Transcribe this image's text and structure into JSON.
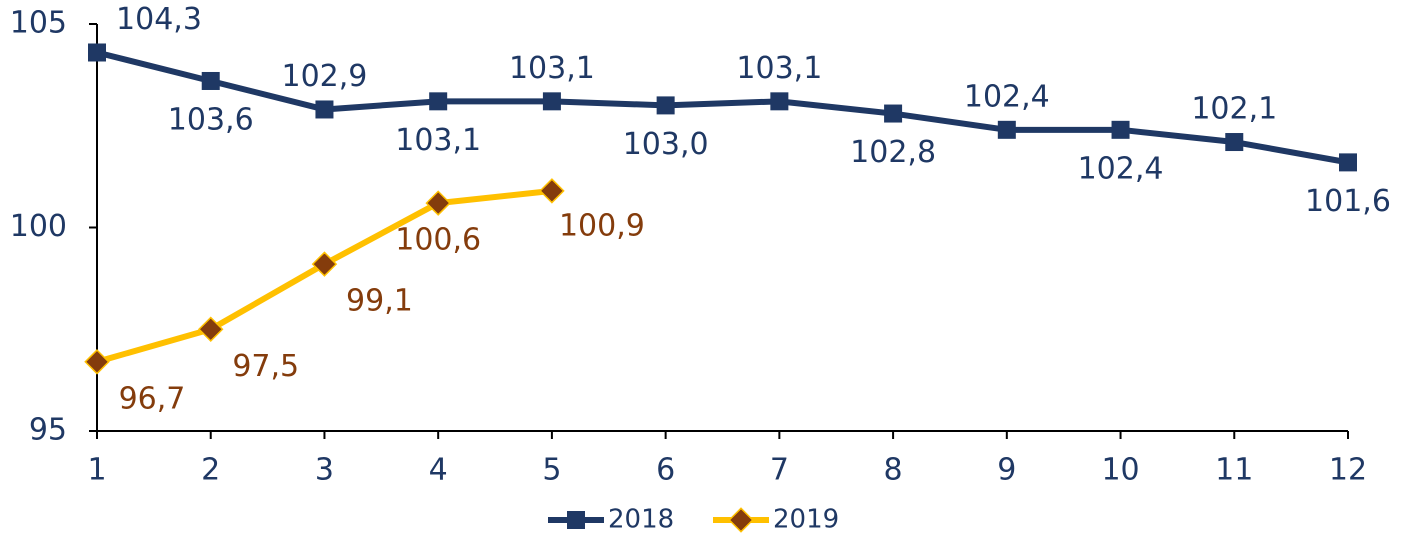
{
  "chart_data": {
    "type": "line",
    "x": [
      1,
      2,
      3,
      4,
      5,
      6,
      7,
      8,
      9,
      10,
      11,
      12
    ],
    "xlim": [
      1,
      12
    ],
    "xticks": [
      1,
      2,
      3,
      4,
      5,
      6,
      7,
      8,
      9,
      10,
      11,
      12
    ],
    "ylim": [
      95,
      105
    ],
    "yticks": [
      95,
      100,
      105
    ],
    "legend": "bottom",
    "series": [
      {
        "name": "2018",
        "color": "#1f3864",
        "marker": "square",
        "marker_color": "#1f3864",
        "label_color": "#1f3864",
        "values": [
          104.3,
          103.6,
          102.9,
          103.1,
          103.1,
          103.0,
          103.1,
          102.8,
          102.4,
          102.4,
          102.1,
          101.6
        ],
        "value_labels": [
          "104,3",
          "103,6",
          "102,9",
          "103,1",
          "103,1",
          "103,0",
          "103,1",
          "102,8",
          "102,4",
          "102,4",
          "102,1",
          "101,6"
        ]
      },
      {
        "name": "2019",
        "color": "#ffc000",
        "marker": "diamond",
        "marker_color": "#843c0c",
        "label_color": "#843c0c",
        "values": [
          96.7,
          97.5,
          99.1,
          100.6,
          100.9,
          null,
          null,
          null,
          null,
          null,
          null,
          null
        ],
        "value_labels": [
          "96,7",
          "97,5",
          "99,1",
          "100,6",
          "100,9",
          null,
          null,
          null,
          null,
          null,
          null,
          null
        ]
      }
    ]
  }
}
